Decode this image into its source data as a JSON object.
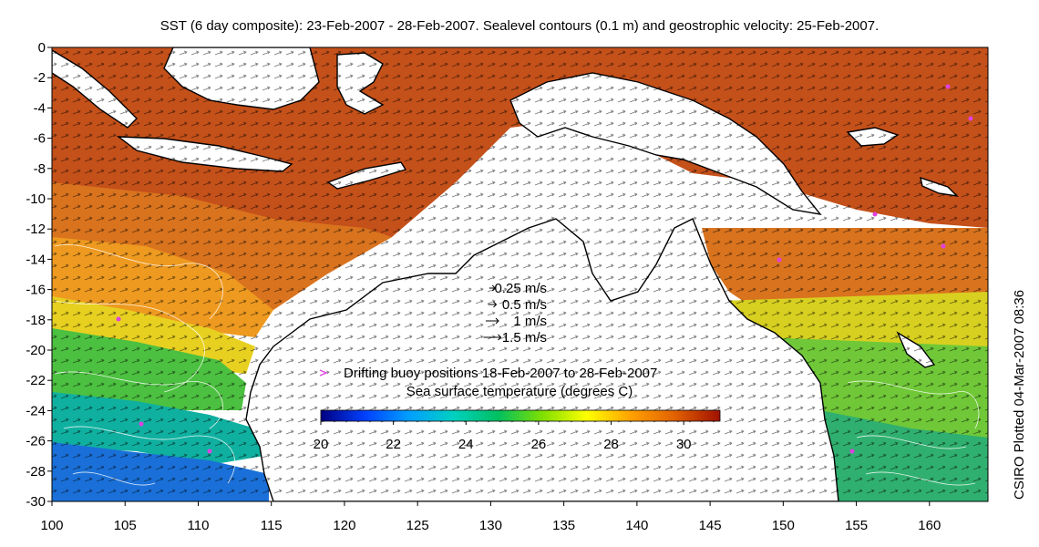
{
  "map": {
    "title": "SST (6 day composite): 23-Feb-2007 - 28-Feb-2007. Sealevel contours (0.1 m) and geostrophic velocity: 25-Feb-2007.",
    "credit": "CSIRO Plotted 04-Mar-2007 08:36",
    "region": "Northern Australia, Indonesia and New Guinea",
    "x_axis": {
      "ticks": [
        "100",
        "105",
        "110",
        "115",
        "120",
        "125",
        "130",
        "135",
        "140",
        "145",
        "150",
        "155",
        "160"
      ],
      "range": [
        100,
        164
      ]
    },
    "y_axis": {
      "ticks": [
        "0",
        "-2",
        "-4",
        "-6",
        "-8",
        "-10",
        "-12",
        "-14",
        "-16",
        "-18",
        "-20",
        "-22",
        "-24",
        "-26",
        "-28",
        "-30"
      ],
      "range": [
        -30,
        0
      ]
    },
    "velocity_legend": {
      "entries": [
        {
          "label": "0.25 m/s",
          "value": 0.25
        },
        {
          "label": "0.5 m/s",
          "value": 0.5
        },
        {
          "label": "1 m/s",
          "value": 1
        },
        {
          "label": "1.5 m/s",
          "value": 1.5
        }
      ]
    },
    "buoy_legend": {
      "label": "Drifting buoy positions 18-Feb-2007 to 28-Feb-2007",
      "color": "#e040e0"
    },
    "colorbar": {
      "title": "Sea surface temperature (degrees C)",
      "ticks": [
        "20",
        "22",
        "24",
        "26",
        "28",
        "30"
      ],
      "range": [
        20,
        31
      ],
      "colors": [
        "#000080",
        "#0040ff",
        "#00a0ff",
        "#00d0c0",
        "#00c060",
        "#80e000",
        "#ffff00",
        "#ffa000",
        "#e06000",
        "#a01000"
      ]
    },
    "colors": {
      "land": "#ffffff",
      "coast": "#000000",
      "contour": "#ffffff",
      "vector": "#000000"
    }
  }
}
